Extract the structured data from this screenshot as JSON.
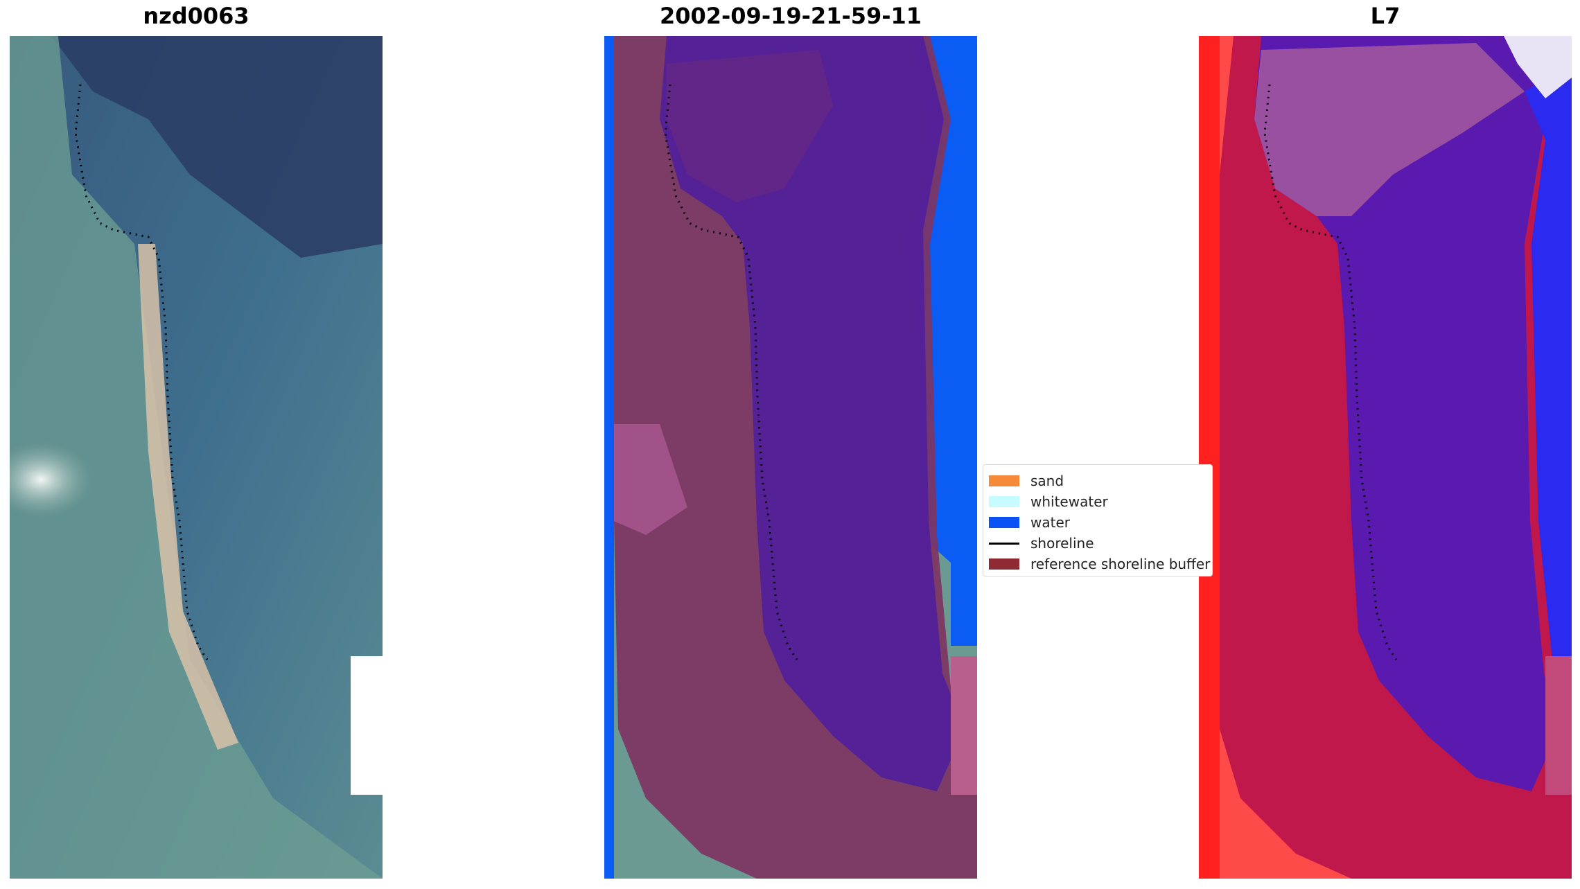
{
  "panels": [
    {
      "title": "nzd0063"
    },
    {
      "title": "2002-09-19-21-59-11"
    },
    {
      "title": "L7"
    }
  ],
  "legend": {
    "items": [
      {
        "label": "sand",
        "color": "#f58a3a"
      },
      {
        "label": "whitewater",
        "color": "#c6fbff"
      },
      {
        "label": "water",
        "color": "#0a52f5"
      },
      {
        "label": "shoreline",
        "color": "#000000",
        "kind": "line"
      },
      {
        "label": "reference shoreline buffer",
        "color": "#8e2b32"
      }
    ]
  },
  "colors": {
    "water_blue": "#2f5f8a",
    "overlay_purple": "#52209a",
    "overlay_buffer": "#7e3462",
    "mndwi_red": "#c0184a",
    "mndwi_blue": "#3b20e0"
  }
}
